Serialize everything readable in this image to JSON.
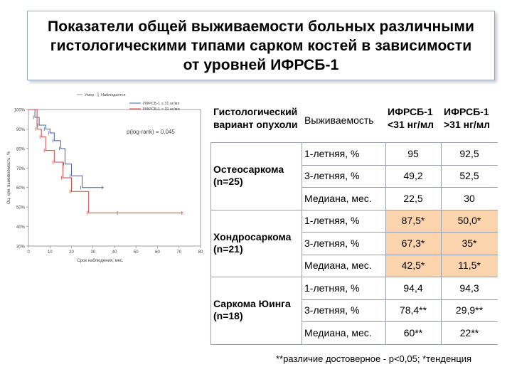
{
  "title": {
    "line1": "Показатели общей выживаемости больных различными",
    "line2": "гистологическими типами сарком костей в зависимости",
    "line3": "от уровней ИФРСБ-1"
  },
  "chart_data": {
    "type": "line",
    "top_legend": [
      "Умер",
      "Наблюдается"
    ],
    "series": [
      {
        "name": "ИФРСБ-1 ≤ 31 нг/мл",
        "color": "#4a5fa8",
        "x": [
          0,
          3,
          5,
          8,
          10,
          12,
          15,
          17,
          20,
          25,
          35
        ],
        "y": [
          100,
          96,
          92,
          90,
          88,
          84,
          80,
          72,
          66,
          60,
          60
        ]
      },
      {
        "name": "ИФРСБ-1 > 31 нг/мл",
        "color": "#d04848",
        "x": [
          0,
          4,
          6,
          8,
          12,
          16,
          20,
          28,
          42,
          72
        ],
        "y": [
          100,
          90,
          86,
          79,
          73,
          65,
          58,
          47,
          47,
          47
        ]
      }
    ],
    "annotation": "p(log-rank) = 0,045",
    "ylabel": "Оц. кум. выживаемость, %",
    "xlabel": "Срок наблюдения, мес.",
    "yticks": [
      "100%",
      "90%",
      "80%",
      "70%",
      "60%",
      "50%",
      "40%",
      "30%"
    ],
    "xticks": [
      "0",
      "10",
      "20",
      "30",
      "40",
      "50",
      "60",
      "70",
      "80"
    ],
    "xlim": [
      0,
      80
    ],
    "ylim": [
      30,
      100
    ]
  },
  "table": {
    "headers": {
      "variant": "Гистологический вариант опухоли",
      "survival": "Выживаемость",
      "low": "ИФРСБ-1 <31 нг/мл",
      "high": "ИФРСБ-1 >31 нг/мл"
    },
    "groups": [
      {
        "name": "Остеосаркома (n=25)",
        "rows": [
          {
            "label": "1-летняя, %",
            "low": "95",
            "high": "92,5",
            "hl": false
          },
          {
            "label": "3-летняя, %",
            "low": "49,2",
            "high": "52,5",
            "hl": false
          },
          {
            "label": "Медиана, мес.",
            "low": "22,5",
            "high": "30",
            "hl": false
          }
        ]
      },
      {
        "name": "Хондросаркома (n=21)",
        "rows": [
          {
            "label": "1-летняя, %",
            "low": "87,5*",
            "high": "50,0*",
            "hl": true
          },
          {
            "label": "3-летняя, %",
            "low": "67,3*",
            "high": "35*",
            "hl": true
          },
          {
            "label": "Медиана, мес.",
            "low": "42,5*",
            "high": "11,5*",
            "hl": true
          }
        ]
      },
      {
        "name": "Саркома Юинга (n=18)",
        "rows": [
          {
            "label": "1-летняя, %",
            "low": "94,4",
            "high": "94,3",
            "hl": false
          },
          {
            "label": "3-летняя, %",
            "low": "78,4**",
            "high": "29,9**",
            "hl": false
          },
          {
            "label": "Медиана, мес.",
            "low": "60**",
            "high": "22**",
            "hl": false
          }
        ]
      }
    ],
    "footnote": "**различие достоверное - p<0,05; *тенденция"
  }
}
